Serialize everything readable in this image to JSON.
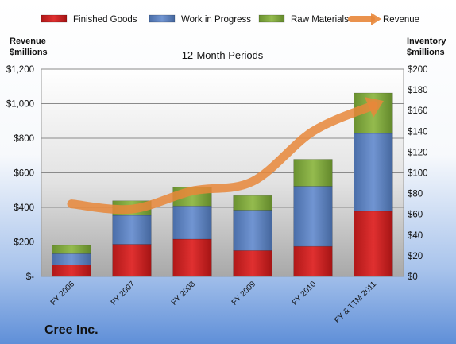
{
  "chart_data": {
    "type": "bar",
    "subtitle": "12-Month Periods",
    "company": "Cree Inc.",
    "categories": [
      "FY 2006",
      "FY 2007",
      "FY 2008",
      "FY 2009",
      "FY 2010",
      "FY & TTM 2011"
    ],
    "y_left": {
      "label_line1": "Revenue",
      "label_line2": "$millions",
      "ylim": [
        0,
        1200
      ],
      "tick_labels": [
        "$-",
        "$200",
        "$400",
        "$600",
        "$800",
        "$1,000",
        "$1,200"
      ]
    },
    "y_right": {
      "label_line1": "Inventory",
      "label_line2": "$millions",
      "ylim": [
        0,
        200
      ],
      "tick_labels": [
        "$0",
        "$20",
        "$40",
        "$60",
        "$80",
        "$100",
        "$120",
        "$140",
        "$160",
        "$180",
        "$200"
      ]
    },
    "series": [
      {
        "name": "Finished Goods",
        "type": "bar",
        "axis": "right",
        "color": "#cc1e1e",
        "values": [
          11,
          31,
          36,
          25,
          29,
          63
        ]
      },
      {
        "name": "Work in Progress",
        "type": "bar",
        "axis": "right",
        "color": "#5a7fbf",
        "values": [
          11,
          28,
          32,
          39,
          58,
          75
        ]
      },
      {
        "name": "Raw Materials",
        "type": "bar",
        "axis": "right",
        "color": "#7ea43a",
        "values": [
          8,
          14,
          18,
          14,
          26,
          39
        ]
      },
      {
        "name": "Revenue",
        "type": "line",
        "axis": "left",
        "color": "#e8873a",
        "values": [
          420,
          390,
          495,
          550,
          840,
          990
        ]
      }
    ],
    "grid": true,
    "legend_position": "top"
  }
}
